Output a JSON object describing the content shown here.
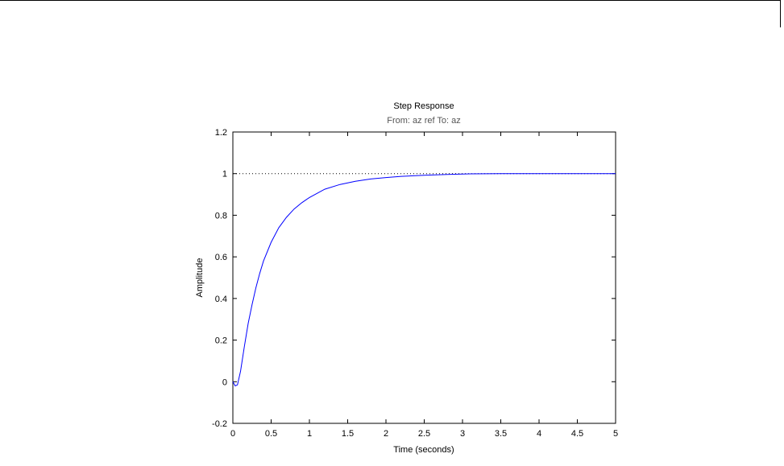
{
  "chart_data": {
    "type": "line",
    "title": "Step Response",
    "subtitle": "From: az ref  To: az",
    "xlabel": "Time (seconds)",
    "ylabel": "Amplitude",
    "xlim": [
      0,
      5
    ],
    "ylim": [
      -0.2,
      1.2
    ],
    "xticks": [
      0,
      0.5,
      1,
      1.5,
      2,
      2.5,
      3,
      3.5,
      4,
      4.5,
      5
    ],
    "xtick_labels": [
      "0",
      "0.5",
      "1",
      "1.5",
      "2",
      "2.5",
      "3",
      "3.5",
      "4",
      "4.5",
      "5"
    ],
    "yticks": [
      -0.2,
      0,
      0.2,
      0.4,
      0.6,
      0.8,
      1,
      1.2
    ],
    "ytick_labels": [
      "-0.2",
      "0",
      "0.2",
      "0.4",
      "0.6",
      "0.8",
      "1",
      "1.2"
    ],
    "grid": false,
    "colors": {
      "response": "#0000ff",
      "reference": "#000000",
      "axes": "#000000"
    },
    "series": [
      {
        "x": [
          0,
          0.03,
          0.06,
          0.1,
          0.15,
          0.2,
          0.25,
          0.3,
          0.35,
          0.4,
          0.5,
          0.6,
          0.7,
          0.8,
          0.9,
          1.0,
          1.2,
          1.4,
          1.6,
          1.8,
          2.0,
          2.2,
          2.5,
          2.8,
          3.1,
          3.5,
          4.0,
          4.5,
          5.0
        ],
        "y": [
          0,
          -0.02,
          -0.015,
          0.05,
          0.17,
          0.28,
          0.37,
          0.45,
          0.52,
          0.58,
          0.67,
          0.74,
          0.79,
          0.83,
          0.86,
          0.885,
          0.925,
          0.948,
          0.963,
          0.974,
          0.981,
          0.987,
          0.992,
          0.996,
          0.999,
          1.0,
          1.0,
          1.0,
          1.0
        ]
      },
      {
        "style": "dotted",
        "x": [
          0,
          5
        ],
        "y": [
          1,
          1
        ]
      }
    ]
  }
}
